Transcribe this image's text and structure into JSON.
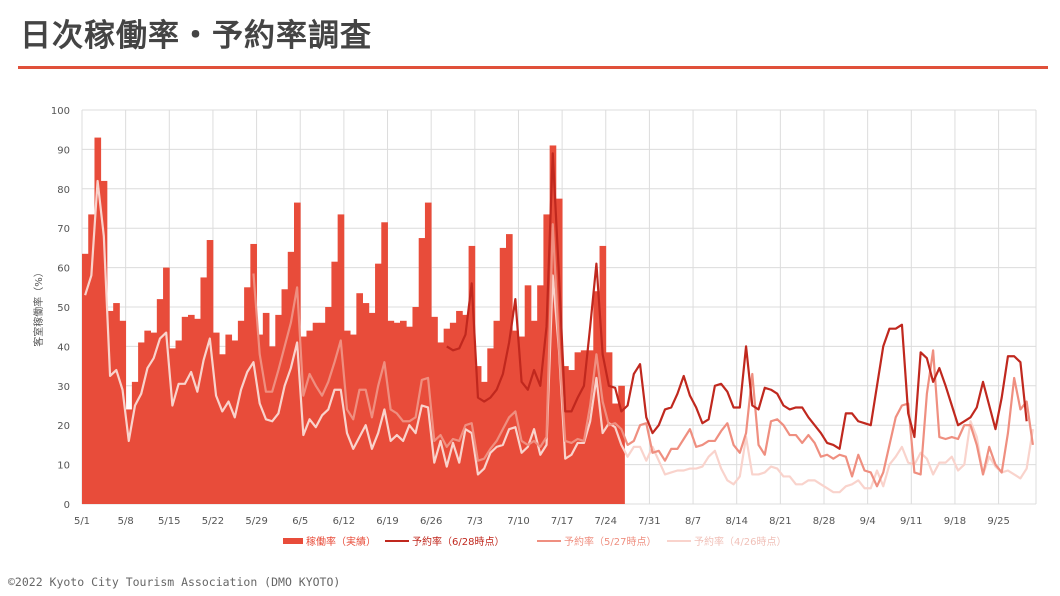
{
  "title": "日次稼働率・予約率調査",
  "footer": "©2022 Kyoto City Tourism Association (DMO KYOTO)",
  "colors": {
    "accent": "#e0503a",
    "bar": "#e84c3a",
    "line_0628": "#c0281e",
    "line_0527": "#ef8f80",
    "line_0426": "#f9d3cc"
  },
  "chart_data": {
    "type": "bar+line",
    "ylabel": "客室稼働率（%）",
    "ylim": [
      0,
      100
    ],
    "yticks": [
      0,
      10,
      20,
      30,
      40,
      50,
      60,
      70,
      80,
      90,
      100
    ],
    "xticks": [
      "5/1",
      "5/8",
      "5/15",
      "5/22",
      "5/29",
      "6/5",
      "6/12",
      "6/19",
      "6/26",
      "7/3",
      "7/10",
      "7/17",
      "7/24",
      "7/31",
      "8/7",
      "8/14",
      "8/21",
      "8/28",
      "9/4",
      "9/11",
      "9/18",
      "9/25"
    ],
    "grid": true,
    "legend_position": "bottom",
    "x": [
      "5/1",
      "5/2",
      "5/3",
      "5/4",
      "5/5",
      "5/6",
      "5/7",
      "5/8",
      "5/9",
      "5/10",
      "5/11",
      "5/12",
      "5/13",
      "5/14",
      "5/15",
      "5/16",
      "5/17",
      "5/18",
      "5/19",
      "5/20",
      "5/21",
      "5/22",
      "5/23",
      "5/24",
      "5/25",
      "5/26",
      "5/27",
      "5/28",
      "5/29",
      "5/30",
      "5/31",
      "6/1",
      "6/2",
      "6/3",
      "6/4",
      "6/5",
      "6/6",
      "6/7",
      "6/8",
      "6/9",
      "6/10",
      "6/11",
      "6/12",
      "6/13",
      "6/14",
      "6/15",
      "6/16",
      "6/17",
      "6/18",
      "6/19",
      "6/20",
      "6/21",
      "6/22",
      "6/23",
      "6/24",
      "6/25",
      "6/26",
      "6/27",
      "6/28",
      "6/29",
      "6/30",
      "7/1",
      "7/2",
      "7/3",
      "7/4",
      "7/5",
      "7/6",
      "7/7",
      "7/8",
      "7/9",
      "7/10",
      "7/11",
      "7/12",
      "7/13",
      "7/14",
      "7/15",
      "7/16",
      "7/17",
      "7/18",
      "7/19",
      "7/20",
      "7/21",
      "7/22",
      "7/23",
      "7/24",
      "7/25",
      "7/26",
      "7/27",
      "7/28",
      "7/29",
      "7/30",
      "7/31",
      "8/1",
      "8/2",
      "8/3",
      "8/4",
      "8/5",
      "8/6",
      "8/7",
      "8/8",
      "8/9",
      "8/10",
      "8/11",
      "8/12",
      "8/13",
      "8/14",
      "8/15",
      "8/16",
      "8/17",
      "8/18",
      "8/19",
      "8/20",
      "8/21",
      "8/22",
      "8/23",
      "8/24",
      "8/25",
      "8/26",
      "8/27",
      "8/28",
      "8/29",
      "8/30",
      "8/31",
      "9/1",
      "9/2",
      "9/3",
      "9/4",
      "9/5",
      "9/6",
      "9/7",
      "9/8",
      "9/9",
      "9/10",
      "9/11",
      "9/12",
      "9/13",
      "9/14",
      "9/15",
      "9/16",
      "9/17",
      "9/18",
      "9/19",
      "9/20",
      "9/21",
      "9/22",
      "9/23",
      "9/24",
      "9/25",
      "9/26",
      "9/27",
      "9/28",
      "9/29",
      "9/30"
    ],
    "series": [
      {
        "name": "稼働率（実績）",
        "kind": "bar",
        "color": "#e84c3a",
        "values": {
          "5/1": 63.5,
          "5/2": 73.5,
          "5/3": 93,
          "5/4": 82,
          "5/5": 49,
          "5/6": 51,
          "5/7": 46.5,
          "5/8": 24,
          "5/9": 31,
          "5/10": 41,
          "5/11": 44,
          "5/12": 43.5,
          "5/13": 52,
          "5/14": 60,
          "5/15": 39.5,
          "5/16": 41.5,
          "5/17": 47.5,
          "5/18": 48,
          "5/19": 47,
          "5/20": 57.5,
          "5/21": 67,
          "5/22": 43.5,
          "5/23": 38,
          "5/24": 43,
          "5/25": 41.5,
          "5/26": 46.5,
          "5/27": 55,
          "5/28": 66,
          "5/29": 43,
          "5/30": 48.5,
          "5/31": 40,
          "6/1": 48,
          "6/2": 54.5,
          "6/3": 64,
          "6/4": 76.5,
          "6/5": 42.5,
          "6/6": 44,
          "6/7": 46,
          "6/8": 46,
          "6/9": 50,
          "6/10": 61.5,
          "6/11": 73.5,
          "6/12": 44,
          "6/13": 43,
          "6/14": 53.5,
          "6/15": 51,
          "6/16": 48.5,
          "6/17": 61,
          "6/18": 71.5,
          "6/19": 46.5,
          "6/20": 46,
          "6/21": 46.5,
          "6/22": 45,
          "6/23": 50,
          "6/24": 67.5,
          "6/25": 76.5,
          "6/26": 47.5,
          "6/27": 41,
          "6/28": 44.5,
          "6/29": 46,
          "6/30": 49,
          "7/1": 48,
          "7/2": 65.5,
          "7/3": 35,
          "7/4": 31,
          "7/5": 39.5,
          "7/6": 46.5,
          "7/7": 65,
          "7/8": 68.5,
          "7/9": 44,
          "7/10": 42.5,
          "7/11": 55.5,
          "7/12": 46.5,
          "7/13": 55.5,
          "7/14": 73.5,
          "7/15": 91,
          "7/16": 77.5,
          "7/17": 35,
          "7/18": 34,
          "7/19": 38.5,
          "7/20": 39,
          "7/21": 39,
          "7/22": 54,
          "7/23": 65.5,
          "7/24": 38.5,
          "7/25": 25.5,
          "7/26": 30
        }
      },
      {
        "name": "予約率（6/28時点）",
        "kind": "line",
        "color": "#c0281e",
        "values": {
          "6/28": 40,
          "6/29": 39,
          "6/30": 39.5,
          "7/1": 43,
          "7/2": 56,
          "7/3": 27,
          "7/4": 26,
          "7/5": 27,
          "7/6": 29,
          "7/7": 33,
          "7/8": 41,
          "7/9": 52,
          "7/10": 31,
          "7/11": 29,
          "7/12": 34,
          "7/13": 30,
          "7/14": 45,
          "7/15": 89,
          "7/16": 58,
          "7/17": 23.5,
          "7/18": 23.5,
          "7/19": 27,
          "7/20": 30,
          "7/21": 45,
          "7/22": 61,
          "7/23": 38,
          "7/24": 30,
          "7/25": 29.5,
          "7/26": 23.5,
          "7/27": 25,
          "7/28": 33,
          "7/29": 35.5,
          "7/30": 22,
          "7/31": 18,
          "8/1": 20,
          "8/2": 24,
          "8/3": 24.5,
          "8/4": 28,
          "8/5": 32.5,
          "8/6": 27.5,
          "8/7": 24.5,
          "8/8": 20.5,
          "8/9": 21.5,
          "8/10": 30,
          "8/11": 30.5,
          "8/12": 28.5,
          "8/13": 24.5,
          "8/14": 24.5,
          "8/15": 40,
          "8/16": 25,
          "8/17": 24,
          "8/18": 29.5,
          "8/19": 29,
          "8/20": 28,
          "8/21": 25,
          "8/22": 24,
          "8/23": 24.5,
          "8/24": 24.5,
          "8/25": 22,
          "8/26": 20,
          "8/27": 18,
          "8/28": 15.5,
          "8/29": 15,
          "8/30": 14,
          "8/31": 23,
          "9/1": 23,
          "9/2": 21,
          "9/3": 20.5,
          "9/4": 20,
          "9/5": 30,
          "9/6": 40,
          "9/7": 44.5,
          "9/8": 44.5,
          "9/9": 45.5,
          "9/10": 23,
          "9/11": 17,
          "9/12": 38.5,
          "9/13": 37,
          "9/14": 31,
          "9/15": 34.5,
          "9/16": 30,
          "9/17": 25,
          "9/18": 20,
          "9/19": 21,
          "9/20": 22,
          "9/21": 24.5,
          "9/22": 31,
          "9/23": 25,
          "9/24": 19,
          "9/25": 27,
          "9/26": 37.5,
          "9/27": 37.5,
          "9/28": 36,
          "9/29": 21
        }
      },
      {
        "name": "予約率（5/27時点）",
        "kind": "line",
        "color": "#ef8f80",
        "values": {
          "5/28": 58.5,
          "5/29": 38,
          "5/30": 28.5,
          "5/31": 28.5,
          "6/1": 34,
          "6/2": 40,
          "6/3": 46,
          "6/4": 55,
          "6/5": 27.5,
          "6/6": 33,
          "6/7": 30,
          "6/8": 27.5,
          "6/9": 31,
          "6/10": 36,
          "6/11": 41.5,
          "6/12": 24,
          "6/13": 21.5,
          "6/14": 29,
          "6/15": 29,
          "6/16": 22,
          "6/17": 30,
          "6/18": 36,
          "6/19": 24,
          "6/20": 23,
          "6/21": 21,
          "6/22": 21,
          "6/23": 22,
          "6/24": 31.5,
          "6/25": 32,
          "6/26": 16,
          "6/27": 17.5,
          "6/28": 14.5,
          "6/29": 16.5,
          "6/30": 16,
          "7/1": 20,
          "7/2": 20.5,
          "7/3": 11,
          "7/4": 11.5,
          "7/5": 14,
          "7/6": 16,
          "7/7": 19,
          "7/8": 22,
          "7/9": 23.5,
          "7/10": 16,
          "7/11": 15,
          "7/12": 16,
          "7/13": 14.5,
          "7/14": 17,
          "7/15": 71,
          "7/16": 40,
          "7/17": 16,
          "7/18": 15.5,
          "7/19": 16.5,
          "7/20": 16,
          "7/21": 25,
          "7/22": 38,
          "7/23": 26,
          "7/24": 20,
          "7/25": 20.5,
          "7/26": 19,
          "7/27": 15,
          "7/28": 16,
          "7/29": 20,
          "7/30": 20.5,
          "7/31": 13,
          "8/1": 13.5,
          "8/2": 11,
          "8/3": 14,
          "8/4": 14,
          "8/5": 16.5,
          "8/6": 19,
          "8/7": 14.5,
          "8/8": 15,
          "8/9": 16,
          "8/10": 16,
          "8/11": 18.5,
          "8/12": 20.5,
          "8/13": 15,
          "8/14": 13,
          "8/15": 18,
          "8/16": 33,
          "8/17": 15,
          "8/18": 12.5,
          "8/19": 21,
          "8/20": 21.5,
          "8/21": 20,
          "8/22": 17.5,
          "8/23": 17.5,
          "8/24": 15.5,
          "8/25": 17.5,
          "8/26": 15.5,
          "8/27": 12,
          "8/28": 12.5,
          "8/29": 11.5,
          "8/30": 12.5,
          "8/31": 12,
          "9/1": 7,
          "9/2": 12.5,
          "9/3": 8.5,
          "9/4": 8,
          "9/5": 4.5,
          "9/6": 8,
          "9/7": 15,
          "9/8": 22,
          "9/9": 25,
          "9/10": 25.5,
          "9/11": 8,
          "9/12": 7.5,
          "9/13": 28,
          "9/14": 39,
          "9/15": 17,
          "9/16": 16.5,
          "9/17": 17,
          "9/18": 16.5,
          "9/19": 20,
          "9/20": 20,
          "9/21": 15,
          "9/22": 7.5,
          "9/23": 14.5,
          "9/24": 10,
          "9/25": 8,
          "9/26": 18,
          "9/27": 32,
          "9/28": 24,
          "9/29": 26,
          "9/30": 15
        }
      },
      {
        "name": "予約率（4/26時点）",
        "kind": "line",
        "color": "#f9d3cc",
        "values": {
          "5/1": 53,
          "5/2": 58,
          "5/3": 82,
          "5/4": 68,
          "5/5": 32.5,
          "5/6": 34,
          "5/7": 29,
          "5/8": 16,
          "5/9": 25,
          "5/10": 28,
          "5/11": 34.5,
          "5/12": 37,
          "5/13": 42,
          "5/14": 43.5,
          "5/15": 25,
          "5/16": 30.5,
          "5/17": 30.5,
          "5/18": 33.5,
          "5/19": 28.5,
          "5/20": 36.5,
          "5/21": 42,
          "5/22": 27.5,
          "5/23": 23.5,
          "5/24": 26,
          "5/25": 22,
          "5/26": 29,
          "5/27": 33.5,
          "5/28": 36,
          "5/29": 25.5,
          "5/30": 21.5,
          "5/31": 21,
          "6/1": 23,
          "6/2": 30,
          "6/3": 34.5,
          "6/4": 41,
          "6/5": 17.5,
          "6/6": 21.5,
          "6/7": 19.5,
          "6/8": 22.5,
          "6/9": 24,
          "6/10": 29,
          "6/11": 29,
          "6/12": 18,
          "6/13": 14,
          "6/14": 17,
          "6/15": 20,
          "6/16": 14,
          "6/17": 18,
          "6/18": 24,
          "6/19": 16,
          "6/20": 17.5,
          "6/21": 16,
          "6/22": 20,
          "6/23": 18,
          "6/24": 25,
          "6/25": 24.5,
          "6/26": 10.5,
          "6/27": 16,
          "6/28": 9.5,
          "6/29": 15.5,
          "6/30": 10.5,
          "7/1": 19,
          "7/2": 18,
          "7/3": 7.5,
          "7/4": 9,
          "7/5": 13,
          "7/6": 14.5,
          "7/7": 15,
          "7/8": 19,
          "7/9": 19.5,
          "7/10": 13,
          "7/11": 14.5,
          "7/12": 19,
          "7/13": 12.5,
          "7/14": 15,
          "7/15": 58,
          "7/16": 39,
          "7/17": 11.5,
          "7/18": 12.5,
          "7/19": 15.5,
          "7/20": 15.5,
          "7/21": 21,
          "7/22": 32,
          "7/23": 18,
          "7/24": 20.5,
          "7/25": 19.5,
          "7/26": 15,
          "7/27": 12,
          "7/28": 14.5,
          "7/29": 14.5,
          "7/30": 11,
          "7/31": 14.5,
          "8/1": 11,
          "8/2": 7.5,
          "8/3": 8,
          "8/4": 8.5,
          "8/5": 8.5,
          "8/6": 9,
          "8/7": 9,
          "8/8": 9.5,
          "8/9": 12,
          "8/10": 13.5,
          "8/11": 9,
          "8/12": 6,
          "8/13": 5,
          "8/14": 7,
          "8/15": 17,
          "8/16": 7.5,
          "8/17": 7.5,
          "8/18": 8,
          "8/19": 9.5,
          "8/20": 9,
          "8/21": 7,
          "8/22": 7,
          "8/23": 5,
          "8/24": 5,
          "8/25": 6,
          "8/26": 6,
          "8/27": 5,
          "8/28": 4,
          "8/29": 3,
          "8/30": 3,
          "8/31": 4.5,
          "9/1": 5,
          "9/2": 6,
          "9/3": 4,
          "9/4": 4,
          "9/5": 8.5,
          "9/6": 4.5,
          "9/7": 10,
          "9/8": 12,
          "9/9": 14.5,
          "9/10": 10.5,
          "9/11": 10,
          "9/12": 13,
          "9/13": 11.5,
          "9/14": 7.5,
          "9/15": 10.5,
          "9/16": 10.5,
          "9/17": 12,
          "9/18": 8.5,
          "9/19": 10,
          "9/20": 21,
          "9/21": 17,
          "9/22": 7.5,
          "9/23": 12,
          "9/24": 9.5,
          "9/25": 8,
          "9/26": 8.5,
          "9/27": 7.5,
          "9/28": 6.5,
          "9/29": 9,
          "9/30": 19
        }
      }
    ]
  }
}
